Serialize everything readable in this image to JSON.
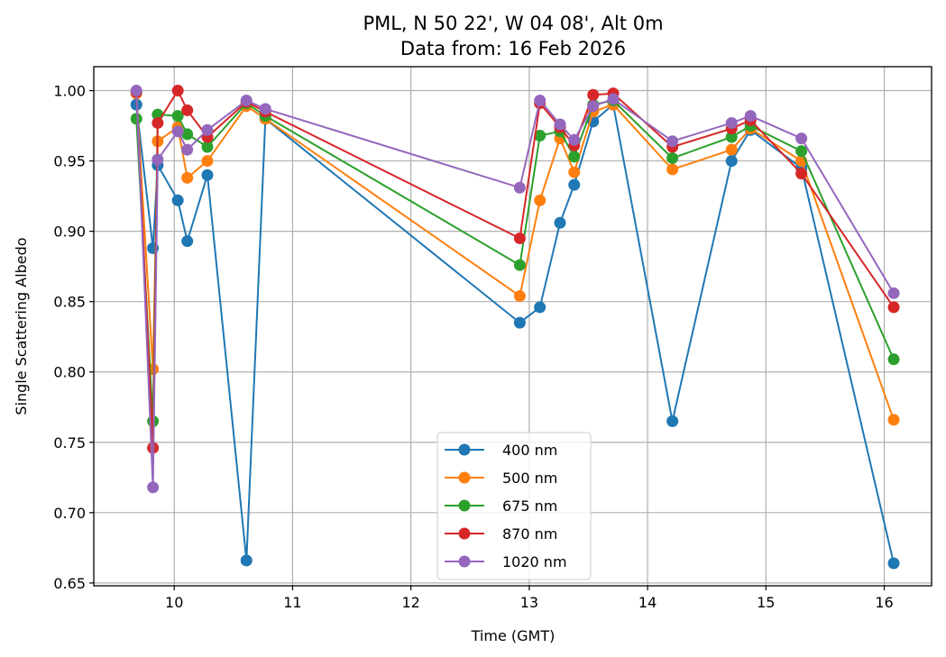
{
  "chart_data": {
    "type": "line",
    "title": "PML, N 50 22', W 04 08', Alt 0m",
    "subtitle": "Data from: 16 Feb 2026",
    "xlabel": "Time (GMT)",
    "ylabel": "Single Scattering Albedo",
    "xlim": [
      9.32,
      16.4
    ],
    "ylim": [
      0.648,
      1.017
    ],
    "xticks": [
      10,
      11,
      12,
      13,
      14,
      15,
      16
    ],
    "xtick_labels": [
      "10",
      "11",
      "12",
      "13",
      "14",
      "15",
      "16"
    ],
    "yticks": [
      0.65,
      0.7,
      0.75,
      0.8,
      0.85,
      0.9,
      0.95,
      1.0
    ],
    "ytick_labels": [
      "0.65",
      "0.70",
      "0.75",
      "0.80",
      "0.85",
      "0.90",
      "0.95",
      "1.00"
    ],
    "grid": true,
    "legend_position": "lower-center",
    "markers": "circle",
    "x": [
      9.68,
      9.82,
      9.86,
      10.03,
      10.11,
      10.28,
      10.61,
      10.77,
      12.92,
      13.09,
      13.26,
      13.38,
      13.54,
      13.71,
      14.21,
      14.71,
      14.87,
      15.3,
      16.08
    ],
    "series": [
      {
        "name": "400 nm",
        "color": "#1f77b4",
        "values": [
          0.99,
          0.888,
          0.947,
          0.922,
          0.893,
          0.94,
          0.666,
          0.98,
          0.835,
          0.846,
          0.906,
          0.933,
          0.978,
          0.99,
          0.765,
          0.95,
          0.972,
          0.945,
          0.664
        ]
      },
      {
        "name": "500 nm",
        "color": "#ff7f0e",
        "values": [
          0.998,
          0.802,
          0.964,
          0.974,
          0.938,
          0.95,
          0.989,
          0.98,
          0.854,
          0.922,
          0.966,
          0.942,
          0.985,
          0.99,
          0.944,
          0.958,
          0.973,
          0.95,
          0.766
        ]
      },
      {
        "name": "675 nm",
        "color": "#2ca02c",
        "values": [
          0.98,
          0.765,
          0.983,
          0.982,
          0.969,
          0.96,
          0.991,
          0.982,
          0.876,
          0.968,
          0.971,
          0.953,
          0.99,
          0.993,
          0.952,
          0.967,
          0.975,
          0.957,
          0.809
        ]
      },
      {
        "name": "870 nm",
        "color": "#d62728",
        "values": [
          0.999,
          0.746,
          0.977,
          1.0,
          0.986,
          0.967,
          0.992,
          0.985,
          0.895,
          0.991,
          0.974,
          0.961,
          0.997,
          0.998,
          0.96,
          0.973,
          0.979,
          0.941,
          0.846
        ]
      },
      {
        "name": "1020 nm",
        "color": "#9467bd",
        "values": [
          1.0,
          0.718,
          0.951,
          0.971,
          0.958,
          0.972,
          0.993,
          0.987,
          0.931,
          0.993,
          0.976,
          0.965,
          0.989,
          0.994,
          0.964,
          0.977,
          0.982,
          0.966,
          0.856
        ]
      }
    ]
  }
}
